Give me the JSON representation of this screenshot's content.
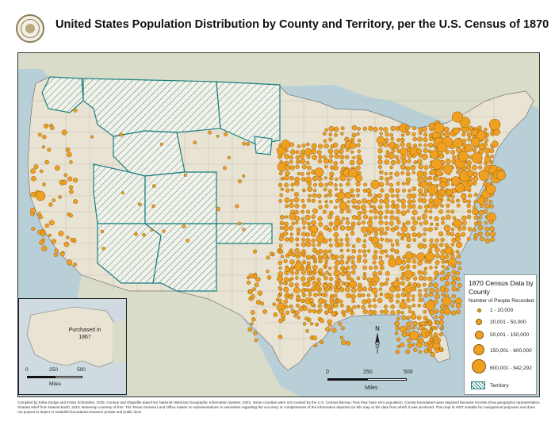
{
  "title": "United States Population Distribution by County and Territory, per the U.S. Census of 1870",
  "seal_icon": "seal-icon",
  "colors": {
    "ocean": "#b9cfd8",
    "land_us": "#e9e3d3",
    "land_other": "#d9dcc8",
    "territory": "#1a8080",
    "dot_fill": "#f0a020",
    "dot_stroke": "#8a5a10",
    "county_line": "#9a9a9a"
  },
  "legend": {
    "title": "1870 Census Data by County",
    "subtitle": "Number of People Recorded",
    "items": [
      {
        "label": "1 - 20,000",
        "size": "smallest"
      },
      {
        "label": "20,001 - 50,000",
        "size": "small"
      },
      {
        "label": "50,001 - 150,000",
        "size": "medium"
      },
      {
        "label": "150,001 - 600,000",
        "size": "large"
      },
      {
        "label": "600,001 - 942,292",
        "size": "largest"
      }
    ],
    "territory_label": "Territory"
  },
  "inset": {
    "label": "Purchased in 1867",
    "scale": {
      "ticks": [
        "0",
        "250",
        "500"
      ],
      "unit": "Miles"
    }
  },
  "main_scale": {
    "ticks": [
      "0",
      "250",
      "500"
    ],
    "unit": "Miles"
  },
  "north_arrow_icon": "north-arrow-icon",
  "footer": "Compiled by Erika Dodge and Krista Schmeiher, 2025. Census and shapefile data from National Historical Geographic Information System, 2023. Some counties were not counted by the U.S. Census Bureau; thus they have zero population. County boundaries were depicted because records show geographic representation. Shaded relief from Natural Earth, 2015. Basemap courtesy of Esri. The Texas General Land Office makes no representations or warranties regarding the accuracy or completeness of the information depicted on this map or the data from which it was produced. This map IS NOT suitable for navigational purposes and does not purport to depict or establish boundaries between private and public land."
}
